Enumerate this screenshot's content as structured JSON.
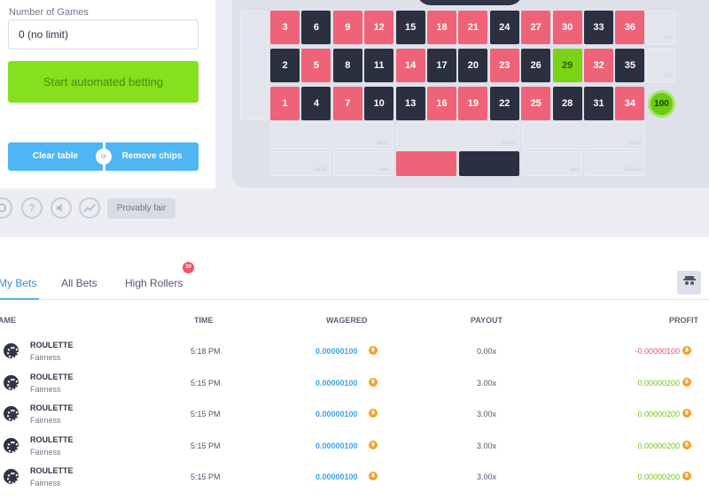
{
  "left_panel": {
    "number_of_games_label": "Number of Games",
    "number_of_games_value": "0 (no limit)",
    "start_button": "Start automated betting",
    "clear_button": "Clear table",
    "or_label": "or",
    "remove_button": "Remove chips"
  },
  "toolbar": {
    "help_glyph": "?",
    "provably_fair": "Provably fair"
  },
  "board": {
    "rows": [
      [
        {
          "n": "3",
          "color": "red"
        },
        {
          "n": "6",
          "color": "black"
        },
        {
          "n": "9",
          "color": "red"
        },
        {
          "n": "12",
          "color": "red"
        },
        {
          "n": "15",
          "color": "black"
        },
        {
          "n": "18",
          "color": "red"
        },
        {
          "n": "21",
          "color": "red"
        },
        {
          "n": "24",
          "color": "black"
        },
        {
          "n": "27",
          "color": "red"
        },
        {
          "n": "30",
          "color": "red"
        },
        {
          "n": "33",
          "color": "black"
        },
        {
          "n": "36",
          "color": "red"
        }
      ],
      [
        {
          "n": "2",
          "color": "black"
        },
        {
          "n": "5",
          "color": "red"
        },
        {
          "n": "8",
          "color": "black"
        },
        {
          "n": "11",
          "color": "black"
        },
        {
          "n": "14",
          "color": "red"
        },
        {
          "n": "17",
          "color": "black"
        },
        {
          "n": "20",
          "color": "black"
        },
        {
          "n": "23",
          "color": "red"
        },
        {
          "n": "26",
          "color": "black"
        },
        {
          "n": "29",
          "color": "green"
        },
        {
          "n": "32",
          "color": "red"
        },
        {
          "n": "35",
          "color": "black"
        }
      ],
      [
        {
          "n": "1",
          "color": "red"
        },
        {
          "n": "4",
          "color": "black"
        },
        {
          "n": "7",
          "color": "red"
        },
        {
          "n": "10",
          "color": "black"
        },
        {
          "n": "13",
          "color": "black"
        },
        {
          "n": "16",
          "color": "red"
        },
        {
          "n": "19",
          "color": "red"
        },
        {
          "n": "22",
          "color": "black"
        },
        {
          "n": "25",
          "color": "red"
        },
        {
          "n": "28",
          "color": "black"
        },
        {
          "n": "31",
          "color": "black"
        },
        {
          "n": "34",
          "color": "red"
        }
      ]
    ],
    "chip_value": "100",
    "colors": {
      "red": "#ef6378",
      "black": "#2b3040",
      "green": "#7ad315"
    }
  },
  "bets": {
    "tabs": [
      "My Bets",
      "All Bets",
      "High Rollers"
    ],
    "high_rollers_badge": "30",
    "columns": [
      "AME",
      "TIME",
      "WAGERED",
      "PAYOUT",
      "PROFIT"
    ],
    "rows": [
      {
        "game": "ROULETTE",
        "sub": "Fairness",
        "time": "5:18 PM",
        "wagered": "0.00000100",
        "payout": "0.00x",
        "profit": "-0.00000100",
        "profit_sign": "neg"
      },
      {
        "game": "ROULETTE",
        "sub": "Fairness",
        "time": "5:15 PM",
        "wagered": "0.00000100",
        "payout": "3.00x",
        "profit": "0.00000200",
        "profit_sign": "pos"
      },
      {
        "game": "ROULETTE",
        "sub": "Fairness",
        "time": "5:15 PM",
        "wagered": "0.00000100",
        "payout": "3.00x",
        "profit": "0.00000200",
        "profit_sign": "pos"
      },
      {
        "game": "ROULETTE",
        "sub": "Fairness",
        "time": "5:15 PM",
        "wagered": "0.00000100",
        "payout": "3.00x",
        "profit": "0.00000200",
        "profit_sign": "pos"
      },
      {
        "game": "ROULETTE",
        "sub": "Fairness",
        "time": "5:15 PM",
        "wagered": "0.00000100",
        "payout": "3.00x",
        "profit": "0.00000200",
        "profit_sign": "pos"
      }
    ]
  }
}
